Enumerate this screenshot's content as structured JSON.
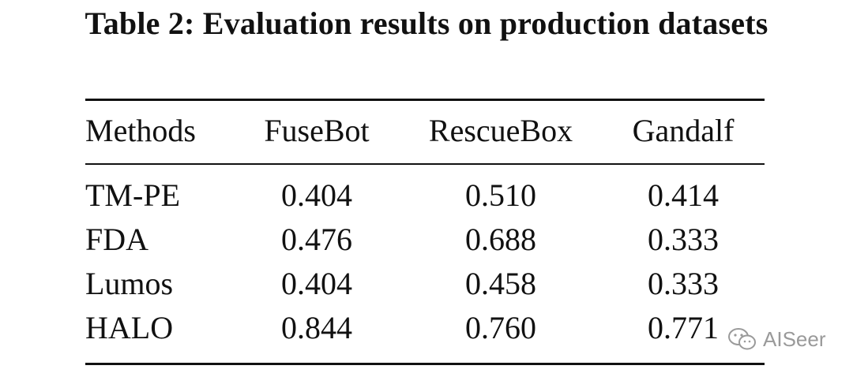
{
  "header": {
    "title": "Table 2: Evaluation results on production datasets"
  },
  "table": {
    "columns": [
      "Methods",
      "FuseBot",
      "RescueBox",
      "Gandalf"
    ],
    "rows": [
      [
        "TM-PE",
        "0.404",
        "0.510",
        "0.414"
      ],
      [
        "FDA",
        "0.476",
        "0.688",
        "0.333"
      ],
      [
        "Lumos",
        "0.404",
        "0.458",
        "0.333"
      ],
      [
        "HALO",
        "0.844",
        "0.760",
        "0.771"
      ]
    ]
  },
  "watermark": "AISeer"
}
